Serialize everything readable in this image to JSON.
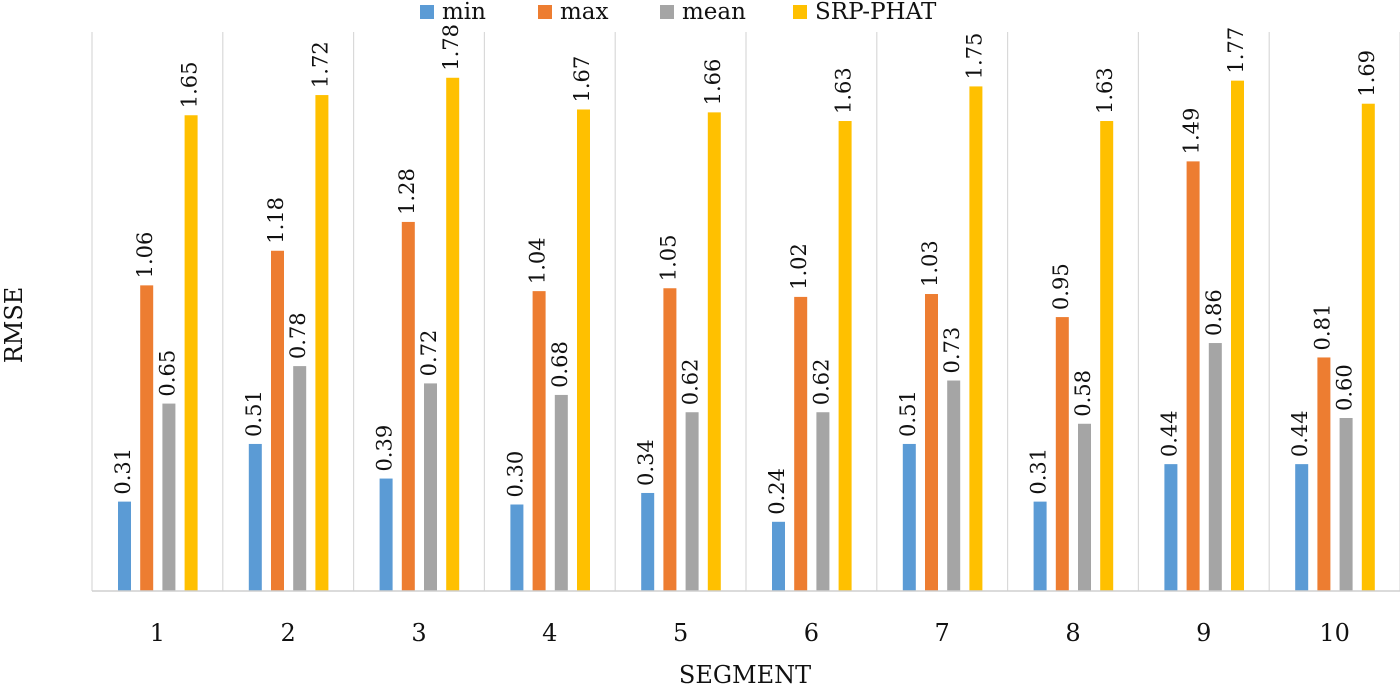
{
  "chart_data": {
    "type": "bar",
    "xlabel": "SEGMENT",
    "ylabel": "RMSE",
    "ylim": [
      0,
      1.8
    ],
    "grid": "vertical category separators",
    "legend_position": "top",
    "categories": [
      "1",
      "2",
      "3",
      "4",
      "5",
      "6",
      "7",
      "8",
      "9",
      "10"
    ],
    "series": [
      {
        "name": "min",
        "color": "#5B9BD5",
        "values": [
          0.31,
          0.51,
          0.39,
          0.3,
          0.34,
          0.24,
          0.51,
          0.31,
          0.44,
          0.44
        ]
      },
      {
        "name": "max",
        "color": "#ED7D31",
        "values": [
          1.06,
          1.18,
          1.28,
          1.04,
          1.05,
          1.02,
          1.03,
          0.95,
          1.49,
          0.81
        ]
      },
      {
        "name": "mean",
        "color": "#A5A5A5",
        "values": [
          0.65,
          0.78,
          0.72,
          0.68,
          0.62,
          0.62,
          0.73,
          0.58,
          0.86,
          0.6
        ]
      },
      {
        "name": "SRP-PHAT",
        "color": "#FFC000",
        "values": [
          1.65,
          1.72,
          1.78,
          1.67,
          1.66,
          1.63,
          1.75,
          1.63,
          1.77,
          1.69
        ]
      }
    ]
  }
}
